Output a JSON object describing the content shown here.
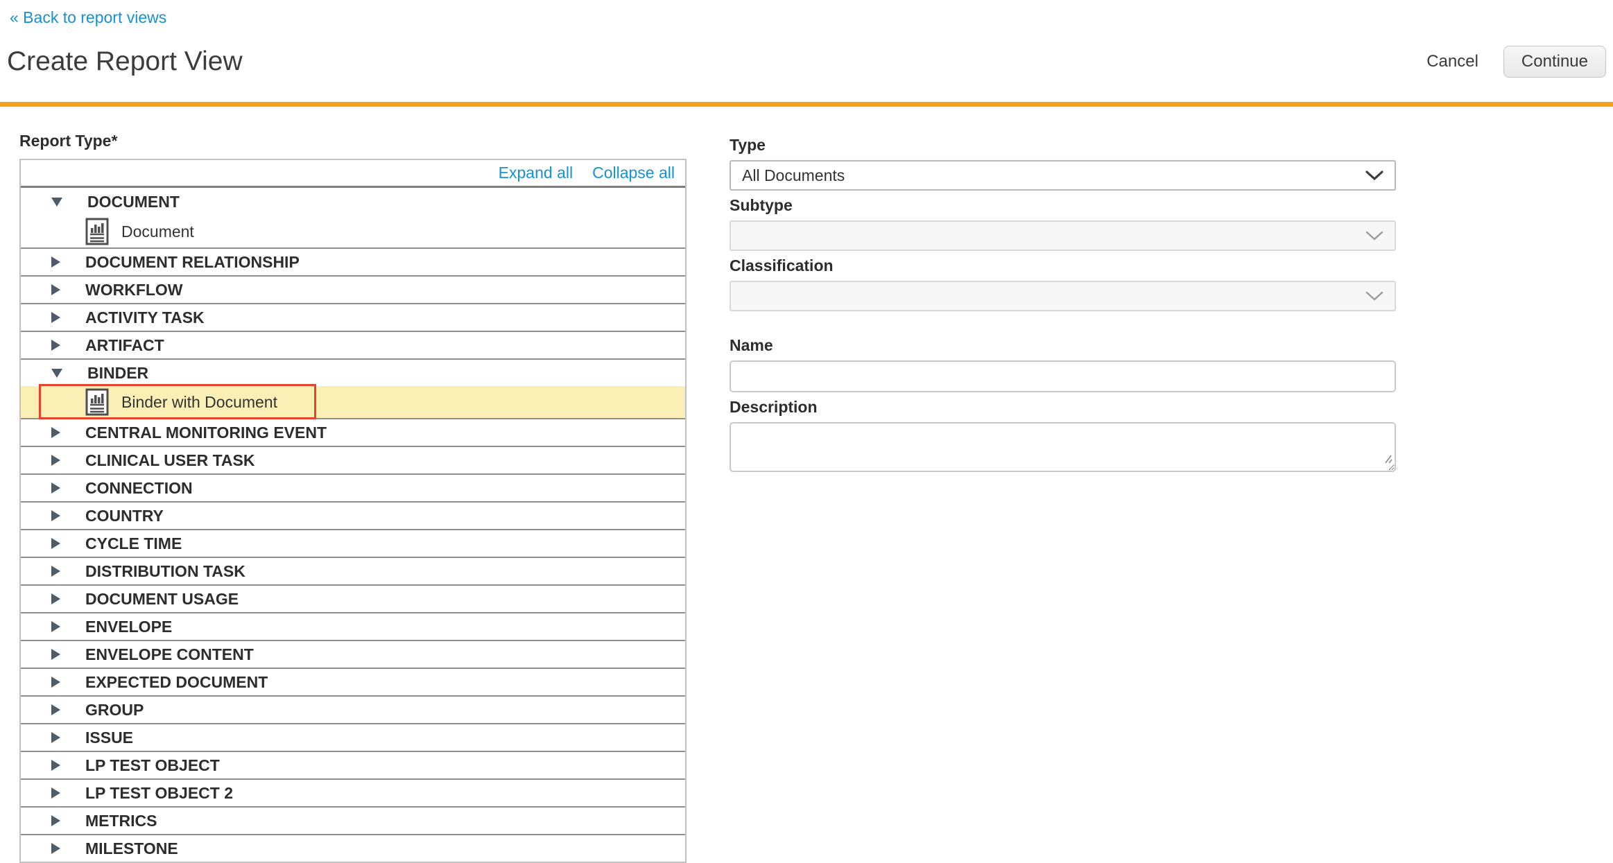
{
  "back_link": "« Back to report views",
  "page": {
    "title": "Create Report View"
  },
  "actions": {
    "cancel": "Cancel",
    "continue": "Continue"
  },
  "colors": {
    "accent_blue": "#1791D1",
    "rule_orange": "#F5A01E",
    "selected_row": "#FAF0B5",
    "annotation_red": "#E8432D",
    "triangle": "#4D5B6A"
  },
  "icons": {
    "group_expanded": "triangle-down-icon",
    "group_collapsed": "triangle-right-icon",
    "leaf": "report-document-icon",
    "select": "chevron-down-icon"
  },
  "tree": {
    "label": "Report Type*",
    "expand_all": "Expand all",
    "collapse_all": "Collapse all",
    "items": [
      {
        "label": "DOCUMENT",
        "type": "group",
        "state": "expanded"
      },
      {
        "label": "Document",
        "type": "leaf",
        "selected": false,
        "annotated": false
      },
      {
        "label": "DOCUMENT RELATIONSHIP",
        "type": "group",
        "state": "collapsed"
      },
      {
        "label": "WORKFLOW",
        "type": "group",
        "state": "collapsed"
      },
      {
        "label": "ACTIVITY TASK",
        "type": "group",
        "state": "collapsed"
      },
      {
        "label": "ARTIFACT",
        "type": "group",
        "state": "collapsed"
      },
      {
        "label": "BINDER",
        "type": "group",
        "state": "expanded"
      },
      {
        "label": "Binder with Document",
        "type": "leaf",
        "selected": true,
        "annotated": true
      },
      {
        "label": "CENTRAL MONITORING EVENT",
        "type": "group",
        "state": "collapsed"
      },
      {
        "label": "CLINICAL USER TASK",
        "type": "group",
        "state": "collapsed"
      },
      {
        "label": "CONNECTION",
        "type": "group",
        "state": "collapsed"
      },
      {
        "label": "COUNTRY",
        "type": "group",
        "state": "collapsed"
      },
      {
        "label": "CYCLE TIME",
        "type": "group",
        "state": "collapsed"
      },
      {
        "label": "DISTRIBUTION TASK",
        "type": "group",
        "state": "collapsed"
      },
      {
        "label": "DOCUMENT USAGE",
        "type": "group",
        "state": "collapsed"
      },
      {
        "label": "ENVELOPE",
        "type": "group",
        "state": "collapsed"
      },
      {
        "label": "ENVELOPE CONTENT",
        "type": "group",
        "state": "collapsed"
      },
      {
        "label": "EXPECTED DOCUMENT",
        "type": "group",
        "state": "collapsed"
      },
      {
        "label": "GROUP",
        "type": "group",
        "state": "collapsed"
      },
      {
        "label": "ISSUE",
        "type": "group",
        "state": "collapsed"
      },
      {
        "label": "LP TEST OBJECT",
        "type": "group",
        "state": "collapsed"
      },
      {
        "label": "LP TEST OBJECT 2",
        "type": "group",
        "state": "collapsed"
      },
      {
        "label": "METRICS",
        "type": "group",
        "state": "collapsed"
      },
      {
        "label": "MILESTONE",
        "type": "group",
        "state": "collapsed"
      }
    ]
  },
  "form": {
    "type": {
      "label": "Type",
      "value": "All Documents",
      "disabled": false
    },
    "subtype": {
      "label": "Subtype",
      "value": "",
      "disabled": true
    },
    "classification": {
      "label": "Classification",
      "value": "",
      "disabled": true
    },
    "name": {
      "label": "Name",
      "value": ""
    },
    "description": {
      "label": "Description",
      "value": ""
    }
  }
}
